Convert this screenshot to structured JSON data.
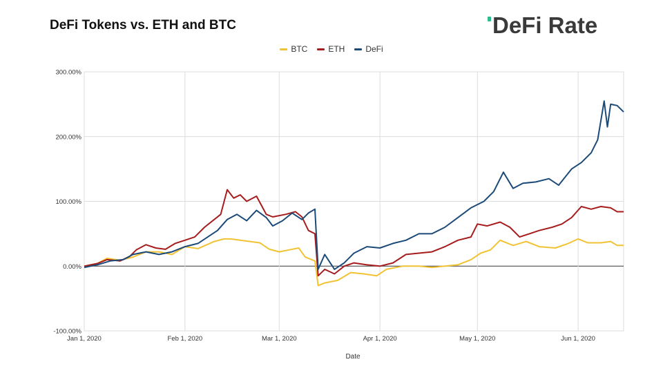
{
  "header": {
    "title": "DeFi Tokens vs. ETH and BTC",
    "logo_text": "DeFi Rate"
  },
  "colors": {
    "BTC": "#f1c232",
    "ETH": "#a61c1c",
    "DeFi": "#1c4a78",
    "grid": "#dcdcdc",
    "zero": "#333333"
  },
  "chart_data": {
    "type": "line",
    "title": "DeFi Tokens vs. ETH and BTC",
    "xlabel": "Date",
    "ylabel": "",
    "ylim": [
      -100,
      300
    ],
    "xlim": [
      "2020-01-01",
      "2020-06-15"
    ],
    "y_ticks": [
      300,
      200,
      100,
      0,
      -100
    ],
    "y_tick_labels": [
      "300.00%",
      "200.00%",
      "100.00%",
      "0.00%",
      "-100.00%"
    ],
    "x_ticks": [
      "2020-01-01",
      "2020-02-01",
      "2020-03-01",
      "2020-04-01",
      "2020-05-01",
      "2020-06-01"
    ],
    "x_tick_labels": [
      "Jan 1, 2020",
      "Feb 1, 2020",
      "Mar 1, 2020",
      "Apr 1, 2020",
      "May 1, 2020",
      "Jun 1, 2020"
    ],
    "grid": true,
    "legend": "top-center",
    "series": [
      {
        "name": "BTC",
        "points": [
          [
            "2020-01-01",
            0
          ],
          [
            "2020-01-05",
            4
          ],
          [
            "2020-01-08",
            12
          ],
          [
            "2020-01-12",
            9
          ],
          [
            "2020-01-16",
            14
          ],
          [
            "2020-01-20",
            22
          ],
          [
            "2020-01-24",
            22
          ],
          [
            "2020-01-28",
            18
          ],
          [
            "2020-02-01",
            30
          ],
          [
            "2020-02-05",
            27
          ],
          [
            "2020-02-10",
            38
          ],
          [
            "2020-02-13",
            42
          ],
          [
            "2020-02-15",
            42
          ],
          [
            "2020-02-18",
            40
          ],
          [
            "2020-02-21",
            38
          ],
          [
            "2020-02-24",
            36
          ],
          [
            "2020-02-27",
            26
          ],
          [
            "2020-03-01",
            22
          ],
          [
            "2020-03-04",
            25
          ],
          [
            "2020-03-07",
            28
          ],
          [
            "2020-03-09",
            14
          ],
          [
            "2020-03-12",
            8
          ],
          [
            "2020-03-13",
            -30
          ],
          [
            "2020-03-15",
            -26
          ],
          [
            "2020-03-19",
            -22
          ],
          [
            "2020-03-23",
            -10
          ],
          [
            "2020-03-27",
            -12
          ],
          [
            "2020-03-31",
            -15
          ],
          [
            "2020-04-03",
            -5
          ],
          [
            "2020-04-08",
            0
          ],
          [
            "2020-04-13",
            0
          ],
          [
            "2020-04-17",
            -2
          ],
          [
            "2020-04-21",
            0
          ],
          [
            "2020-04-25",
            2
          ],
          [
            "2020-04-29",
            10
          ],
          [
            "2020-05-02",
            20
          ],
          [
            "2020-05-05",
            25
          ],
          [
            "2020-05-08",
            40
          ],
          [
            "2020-05-12",
            32
          ],
          [
            "2020-05-16",
            38
          ],
          [
            "2020-05-20",
            30
          ],
          [
            "2020-05-25",
            28
          ],
          [
            "2020-05-29",
            35
          ],
          [
            "2020-06-01",
            42
          ],
          [
            "2020-06-04",
            36
          ],
          [
            "2020-06-08",
            36
          ],
          [
            "2020-06-11",
            38
          ],
          [
            "2020-06-13",
            32
          ],
          [
            "2020-06-15",
            32
          ]
        ]
      },
      {
        "name": "ETH",
        "points": [
          [
            "2020-01-01",
            0
          ],
          [
            "2020-01-05",
            4
          ],
          [
            "2020-01-08",
            10
          ],
          [
            "2020-01-12",
            8
          ],
          [
            "2020-01-15",
            15
          ],
          [
            "2020-01-17",
            25
          ],
          [
            "2020-01-20",
            33
          ],
          [
            "2020-01-23",
            28
          ],
          [
            "2020-01-26",
            26
          ],
          [
            "2020-01-29",
            35
          ],
          [
            "2020-02-01",
            40
          ],
          [
            "2020-02-04",
            45
          ],
          [
            "2020-02-07",
            60
          ],
          [
            "2020-02-10",
            72
          ],
          [
            "2020-02-12",
            80
          ],
          [
            "2020-02-14",
            118
          ],
          [
            "2020-02-16",
            105
          ],
          [
            "2020-02-18",
            110
          ],
          [
            "2020-02-20",
            100
          ],
          [
            "2020-02-23",
            108
          ],
          [
            "2020-02-26",
            80
          ],
          [
            "2020-02-28",
            76
          ],
          [
            "2020-03-03",
            80
          ],
          [
            "2020-03-06",
            84
          ],
          [
            "2020-03-08",
            76
          ],
          [
            "2020-03-10",
            55
          ],
          [
            "2020-03-12",
            50
          ],
          [
            "2020-03-13",
            -15
          ],
          [
            "2020-03-15",
            -5
          ],
          [
            "2020-03-18",
            -12
          ],
          [
            "2020-03-21",
            0
          ],
          [
            "2020-03-24",
            5
          ],
          [
            "2020-03-28",
            2
          ],
          [
            "2020-04-01",
            0
          ],
          [
            "2020-04-05",
            5
          ],
          [
            "2020-04-09",
            18
          ],
          [
            "2020-04-13",
            20
          ],
          [
            "2020-04-17",
            22
          ],
          [
            "2020-04-21",
            30
          ],
          [
            "2020-04-25",
            40
          ],
          [
            "2020-04-29",
            45
          ],
          [
            "2020-05-01",
            65
          ],
          [
            "2020-05-04",
            62
          ],
          [
            "2020-05-08",
            68
          ],
          [
            "2020-05-11",
            60
          ],
          [
            "2020-05-14",
            45
          ],
          [
            "2020-05-17",
            50
          ],
          [
            "2020-05-20",
            55
          ],
          [
            "2020-05-24",
            60
          ],
          [
            "2020-05-27",
            65
          ],
          [
            "2020-05-30",
            75
          ],
          [
            "2020-06-02",
            92
          ],
          [
            "2020-06-05",
            88
          ],
          [
            "2020-06-08",
            92
          ],
          [
            "2020-06-11",
            90
          ],
          [
            "2020-06-13",
            84
          ],
          [
            "2020-06-15",
            84
          ]
        ]
      },
      {
        "name": "DeFi",
        "points": [
          [
            "2020-01-01",
            -2
          ],
          [
            "2020-01-05",
            2
          ],
          [
            "2020-01-09",
            8
          ],
          [
            "2020-01-13",
            10
          ],
          [
            "2020-01-16",
            18
          ],
          [
            "2020-01-20",
            22
          ],
          [
            "2020-01-24",
            18
          ],
          [
            "2020-01-28",
            22
          ],
          [
            "2020-02-01",
            30
          ],
          [
            "2020-02-05",
            35
          ],
          [
            "2020-02-08",
            45
          ],
          [
            "2020-02-11",
            55
          ],
          [
            "2020-02-14",
            72
          ],
          [
            "2020-02-17",
            80
          ],
          [
            "2020-02-20",
            70
          ],
          [
            "2020-02-23",
            86
          ],
          [
            "2020-02-26",
            75
          ],
          [
            "2020-02-28",
            62
          ],
          [
            "2020-03-02",
            70
          ],
          [
            "2020-03-05",
            82
          ],
          [
            "2020-03-08",
            72
          ],
          [
            "2020-03-10",
            82
          ],
          [
            "2020-03-12",
            88
          ],
          [
            "2020-03-13",
            -5
          ],
          [
            "2020-03-15",
            18
          ],
          [
            "2020-03-18",
            -5
          ],
          [
            "2020-03-21",
            5
          ],
          [
            "2020-03-24",
            20
          ],
          [
            "2020-03-28",
            30
          ],
          [
            "2020-04-01",
            28
          ],
          [
            "2020-04-05",
            35
          ],
          [
            "2020-04-09",
            40
          ],
          [
            "2020-04-13",
            50
          ],
          [
            "2020-04-17",
            50
          ],
          [
            "2020-04-21",
            60
          ],
          [
            "2020-04-25",
            75
          ],
          [
            "2020-04-29",
            90
          ],
          [
            "2020-05-03",
            100
          ],
          [
            "2020-05-06",
            115
          ],
          [
            "2020-05-09",
            145
          ],
          [
            "2020-05-12",
            120
          ],
          [
            "2020-05-15",
            128
          ],
          [
            "2020-05-19",
            130
          ],
          [
            "2020-05-23",
            135
          ],
          [
            "2020-05-26",
            125
          ],
          [
            "2020-05-30",
            150
          ],
          [
            "2020-06-02",
            160
          ],
          [
            "2020-06-05",
            175
          ],
          [
            "2020-06-07",
            195
          ],
          [
            "2020-06-09",
            255
          ],
          [
            "2020-06-10",
            215
          ],
          [
            "2020-06-11",
            250
          ],
          [
            "2020-06-13",
            248
          ],
          [
            "2020-06-15",
            238
          ]
        ]
      }
    ]
  }
}
